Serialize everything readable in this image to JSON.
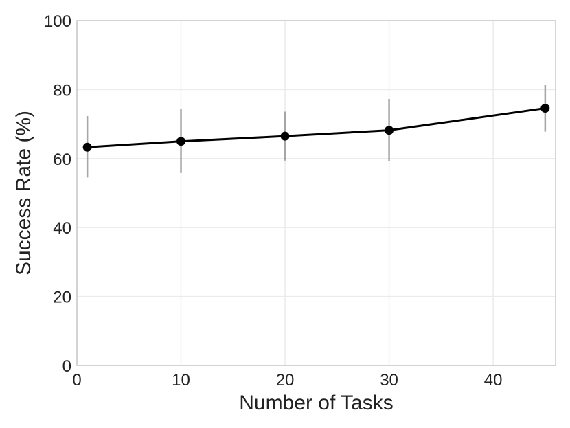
{
  "chart_data": {
    "type": "line",
    "title": "",
    "xlabel": "Number of Tasks",
    "ylabel": "Success Rate (%)",
    "xlim": [
      0,
      46
    ],
    "ylim": [
      0,
      100
    ],
    "x_ticks": [
      0,
      10,
      20,
      30,
      40
    ],
    "x_tick_labels": [
      "0",
      "10",
      "20",
      "30",
      "40"
    ],
    "y_ticks": [
      0,
      20,
      40,
      60,
      80,
      100
    ],
    "y_tick_labels": [
      "0",
      "20",
      "40",
      "60",
      "80",
      "100"
    ],
    "grid": true,
    "legend": "none",
    "series": [
      {
        "x": [
          1,
          10,
          20,
          30,
          45
        ],
        "y": [
          63.3,
          65.0,
          66.5,
          68.2,
          74.6
        ],
        "error_low": [
          54.5,
          55.8,
          59.4,
          59.3,
          67.8
        ],
        "error_high": [
          72.3,
          74.5,
          73.6,
          77.3,
          81.3
        ],
        "line_color": "#000000",
        "marker_color": "#000000",
        "error_bar_color": "#a6a6a6"
      }
    ]
  }
}
